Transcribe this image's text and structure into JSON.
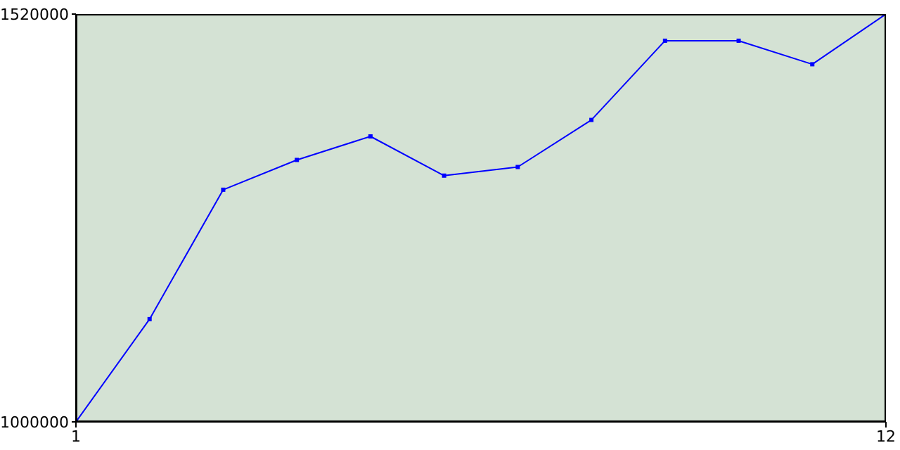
{
  "chart_data": {
    "type": "line",
    "x": [
      1,
      2,
      3,
      4,
      5,
      6,
      7,
      8,
      9,
      10,
      11,
      12
    ],
    "series": [
      {
        "color": "#0000ff",
        "values": [
          1000000,
          1131000,
          1296000,
          1334000,
          1364000,
          1314000,
          1325000,
          1385000,
          1486000,
          1486000,
          1456000,
          1520000
        ]
      }
    ],
    "xlim": [
      1,
      12
    ],
    "xticks": [
      1,
      12
    ],
    "ylim": [
      1000000,
      1520000
    ],
    "yticks": [
      1000000,
      1520000
    ],
    "marker": "square",
    "line_style": "solid",
    "grid": false
  }
}
